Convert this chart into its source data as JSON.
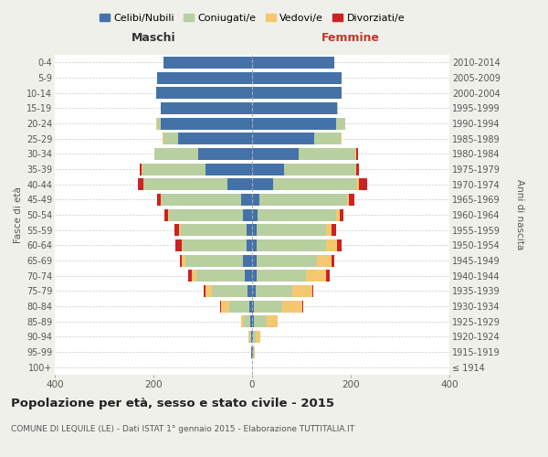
{
  "age_groups": [
    "100+",
    "95-99",
    "90-94",
    "85-89",
    "80-84",
    "75-79",
    "70-74",
    "65-69",
    "60-64",
    "55-59",
    "50-54",
    "45-49",
    "40-44",
    "35-39",
    "30-34",
    "25-29",
    "20-24",
    "15-19",
    "10-14",
    "5-9",
    "0-4"
  ],
  "birth_years": [
    "≤ 1914",
    "1915-1919",
    "1920-1924",
    "1925-1929",
    "1930-1934",
    "1935-1939",
    "1940-1944",
    "1945-1949",
    "1950-1954",
    "1955-1959",
    "1960-1964",
    "1965-1969",
    "1970-1974",
    "1975-1979",
    "1980-1984",
    "1985-1989",
    "1990-1994",
    "1995-1999",
    "2000-2004",
    "2005-2009",
    "2010-2014"
  ],
  "maschi_celibi": [
    0,
    1,
    2,
    4,
    5,
    10,
    15,
    18,
    12,
    12,
    18,
    22,
    50,
    95,
    110,
    150,
    185,
    185,
    195,
    192,
    180
  ],
  "maschi_coniugati": [
    0,
    1,
    3,
    12,
    42,
    72,
    98,
    118,
    128,
    132,
    150,
    162,
    170,
    128,
    88,
    30,
    8,
    1,
    0,
    0,
    0
  ],
  "maschi_vedovi": [
    0,
    0,
    2,
    6,
    16,
    12,
    10,
    6,
    3,
    4,
    2,
    2,
    1,
    1,
    0,
    1,
    1,
    0,
    0,
    0,
    0
  ],
  "maschi_divorziati": [
    0,
    0,
    1,
    1,
    1,
    4,
    7,
    4,
    13,
    10,
    7,
    7,
    10,
    4,
    1,
    0,
    0,
    0,
    0,
    0,
    0
  ],
  "femmine_nubili": [
    0,
    1,
    2,
    4,
    4,
    7,
    10,
    10,
    10,
    10,
    12,
    15,
    42,
    65,
    95,
    125,
    170,
    172,
    182,
    182,
    167
  ],
  "femmine_coniugate": [
    0,
    2,
    6,
    25,
    58,
    75,
    100,
    122,
    140,
    140,
    158,
    178,
    170,
    145,
    115,
    55,
    18,
    2,
    0,
    0,
    0
  ],
  "femmine_vedove": [
    0,
    2,
    8,
    22,
    40,
    40,
    40,
    30,
    22,
    12,
    8,
    4,
    4,
    2,
    2,
    1,
    1,
    0,
    0,
    0,
    0
  ],
  "femmine_divorziate": [
    0,
    0,
    1,
    1,
    2,
    2,
    7,
    4,
    10,
    9,
    7,
    10,
    18,
    4,
    2,
    1,
    0,
    0,
    0,
    0,
    0
  ],
  "col_celibi": "#4472a8",
  "col_coniugati": "#b8cfa0",
  "col_vedovi": "#f5c870",
  "col_divorziati": "#cc2222",
  "xlim": 400,
  "bg_color": "#f0f0eb",
  "plot_bg": "#ffffff",
  "title": "Popolazione per età, sesso e stato civile - 2015",
  "subtitle": "COMUNE DI LEQUILE (LE) - Dati ISTAT 1° gennaio 2015 - Elaborazione TUTTITALIA.IT",
  "legend_labels": [
    "Celibi/Nubili",
    "Coniugati/e",
    "Vedovi/e",
    "Divorziati/e"
  ],
  "maschi_label": "Maschi",
  "femmine_label": "Femmine",
  "ylabel_left": "Fasce di età",
  "ylabel_right": "Anni di nascita"
}
